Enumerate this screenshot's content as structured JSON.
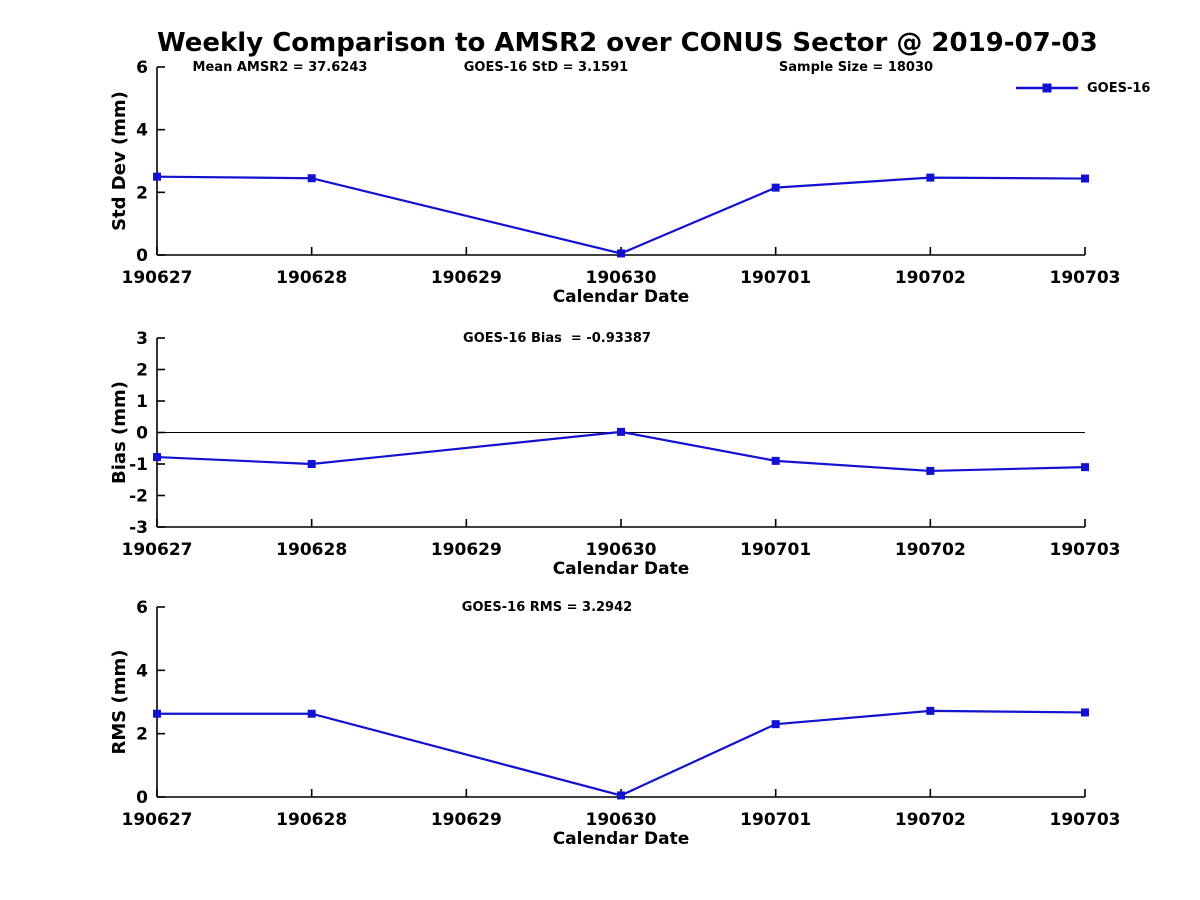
{
  "figure": {
    "title": "Weekly Comparison to AMSR2 over CONUS Sector @ 2019-07-03",
    "background": "#ffffff",
    "accent_color": "#1212d0",
    "legend": {
      "label": "GOES-16",
      "position": "top-right"
    }
  },
  "chart_data": [
    {
      "type": "line",
      "id": "std-dev-subplot",
      "annotations": [
        {
          "text": "Mean AMSR2 = 37.6243",
          "x": 280
        },
        {
          "text": "GOES-16 StD = 3.1591",
          "x": 546
        },
        {
          "text": "Sample Size = 18030",
          "x": 856
        }
      ],
      "categories": [
        "190627",
        "190628",
        "190629",
        "190630",
        "190701",
        "190702",
        "190703"
      ],
      "series": [
        {
          "name": "GOES-16",
          "color": "#1212d0",
          "values": [
            2.5,
            2.45,
            null,
            0.05,
            2.15,
            2.47,
            2.44
          ]
        }
      ],
      "xlabel": "Calendar Date",
      "ylabel": "Std Dev (mm)",
      "ylim": [
        0,
        6
      ],
      "yticks": [
        0,
        2,
        4,
        6
      ],
      "zero_line": false,
      "grid": false
    },
    {
      "type": "line",
      "id": "bias-subplot",
      "annotations": [
        {
          "text": "GOES-16 Bias  = -0.93387",
          "x": 557
        }
      ],
      "categories": [
        "190627",
        "190628",
        "190629",
        "190630",
        "190701",
        "190702",
        "190703"
      ],
      "series": [
        {
          "name": "GOES-16",
          "color": "#1212d0",
          "values": [
            -0.78,
            -1.0,
            null,
            0.02,
            -0.9,
            -1.22,
            -1.1
          ]
        }
      ],
      "xlabel": "Calendar Date",
      "ylabel": "Bias (mm)",
      "ylim": [
        -3,
        3
      ],
      "yticks": [
        -3,
        -2,
        -1,
        0,
        1,
        2,
        3
      ],
      "zero_line": true,
      "grid": false
    },
    {
      "type": "line",
      "id": "rms-subplot",
      "annotations": [
        {
          "text": "GOES-16 RMS = 3.2942",
          "x": 547
        }
      ],
      "categories": [
        "190627",
        "190628",
        "190629",
        "190630",
        "190701",
        "190702",
        "190703"
      ],
      "series": [
        {
          "name": "GOES-16",
          "color": "#1212d0",
          "values": [
            2.63,
            2.63,
            null,
            0.05,
            2.3,
            2.72,
            2.67
          ]
        }
      ],
      "xlabel": "Calendar Date",
      "ylabel": "RMS (mm)",
      "ylim": [
        0,
        6
      ],
      "yticks": [
        0,
        2,
        4,
        6
      ],
      "zero_line": false,
      "grid": false
    }
  ]
}
